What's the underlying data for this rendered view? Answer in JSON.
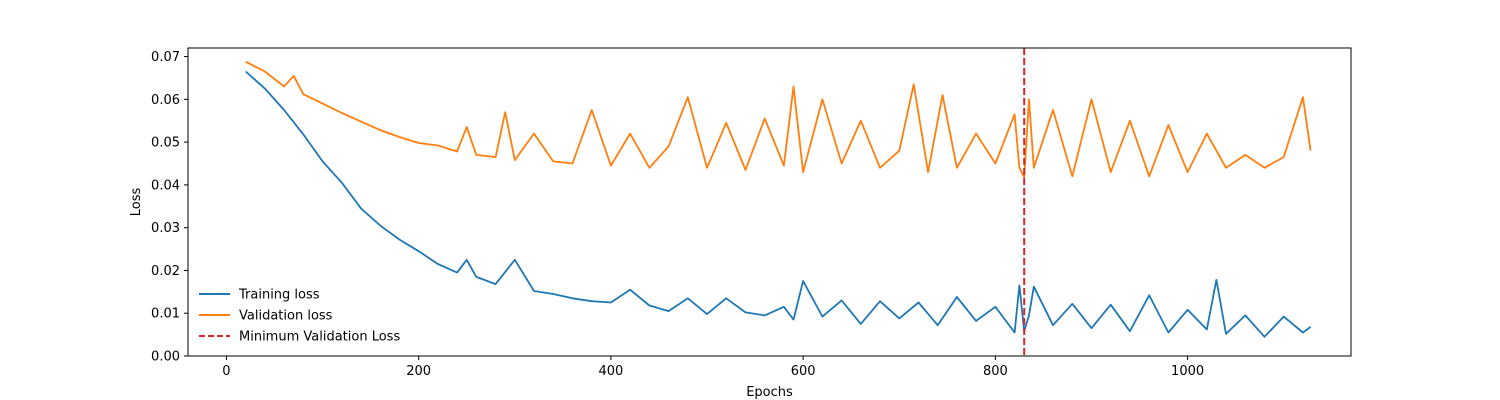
{
  "chart_data": {
    "type": "line",
    "title": "",
    "xlabel": "Epochs",
    "ylabel": "Loss",
    "xlim": [
      -40,
      1170
    ],
    "ylim": [
      0,
      0.072
    ],
    "x_ticks": [
      0,
      200,
      400,
      600,
      800,
      1000
    ],
    "y_ticks": [
      0.0,
      0.01,
      0.02,
      0.03,
      0.04,
      0.05,
      0.06,
      0.07
    ],
    "y_tick_labels": [
      "0.00",
      "0.01",
      "0.02",
      "0.03",
      "0.04",
      "0.05",
      "0.06",
      "0.07"
    ],
    "grid": false,
    "legend_position": "lower-left",
    "min_validation_epoch": 830,
    "series": [
      {
        "name": "Training loss",
        "color": "#1f77b4",
        "x": [
          20,
          40,
          60,
          80,
          100,
          120,
          140,
          160,
          180,
          200,
          220,
          240,
          250,
          260,
          280,
          300,
          320,
          340,
          360,
          380,
          400,
          420,
          440,
          460,
          480,
          500,
          520,
          540,
          560,
          580,
          590,
          600,
          620,
          640,
          660,
          680,
          700,
          720,
          740,
          760,
          780,
          800,
          820,
          825,
          830,
          835,
          840,
          860,
          880,
          900,
          920,
          940,
          960,
          980,
          1000,
          1020,
          1030,
          1040,
          1060,
          1080,
          1100,
          1120,
          1128
        ],
        "y": [
          0.0665,
          0.0625,
          0.0575,
          0.0518,
          0.0455,
          0.0405,
          0.0345,
          0.0305,
          0.0272,
          0.0245,
          0.0215,
          0.0195,
          0.0225,
          0.0185,
          0.0168,
          0.0225,
          0.0152,
          0.0145,
          0.0135,
          0.0128,
          0.0125,
          0.0155,
          0.0118,
          0.0105,
          0.0135,
          0.0098,
          0.0135,
          0.0102,
          0.0095,
          0.0115,
          0.0085,
          0.0175,
          0.0092,
          0.013,
          0.0075,
          0.0128,
          0.0088,
          0.0125,
          0.0072,
          0.0138,
          0.0082,
          0.0115,
          0.0055,
          0.0165,
          0.0058,
          0.0095,
          0.0162,
          0.0072,
          0.0122,
          0.0065,
          0.012,
          0.0058,
          0.0142,
          0.0055,
          0.0108,
          0.0062,
          0.0178,
          0.0052,
          0.0095,
          0.0045,
          0.0092,
          0.0055,
          0.0068
        ]
      },
      {
        "name": "Validation loss",
        "color": "#ff7f0e",
        "x": [
          20,
          40,
          60,
          70,
          80,
          100,
          120,
          140,
          160,
          180,
          200,
          220,
          240,
          250,
          260,
          280,
          290,
          300,
          320,
          340,
          360,
          380,
          400,
          420,
          440,
          460,
          480,
          500,
          520,
          540,
          560,
          580,
          590,
          600,
          620,
          640,
          660,
          680,
          700,
          715,
          730,
          745,
          760,
          780,
          800,
          820,
          825,
          830,
          835,
          840,
          860,
          880,
          900,
          920,
          940,
          960,
          980,
          1000,
          1020,
          1040,
          1060,
          1080,
          1100,
          1120,
          1128
        ],
        "y": [
          0.0688,
          0.0665,
          0.063,
          0.0655,
          0.0612,
          0.059,
          0.0568,
          0.0548,
          0.0528,
          0.0512,
          0.0498,
          0.0492,
          0.0478,
          0.0535,
          0.047,
          0.0465,
          0.057,
          0.0458,
          0.052,
          0.0455,
          0.045,
          0.0575,
          0.0445,
          0.052,
          0.044,
          0.049,
          0.0605,
          0.044,
          0.0545,
          0.0435,
          0.0555,
          0.0445,
          0.063,
          0.043,
          0.06,
          0.045,
          0.055,
          0.044,
          0.048,
          0.0635,
          0.043,
          0.061,
          0.044,
          0.052,
          0.045,
          0.0565,
          0.044,
          0.0418,
          0.06,
          0.044,
          0.0575,
          0.042,
          0.06,
          0.043,
          0.055,
          0.042,
          0.054,
          0.043,
          0.052,
          0.044,
          0.047,
          0.044,
          0.0465,
          0.0605,
          0.048
        ]
      }
    ],
    "annotations": [
      {
        "name": "Minimum Validation Loss",
        "type": "vline",
        "x": 830,
        "color": "#d62728",
        "style": "dashed"
      }
    ]
  }
}
